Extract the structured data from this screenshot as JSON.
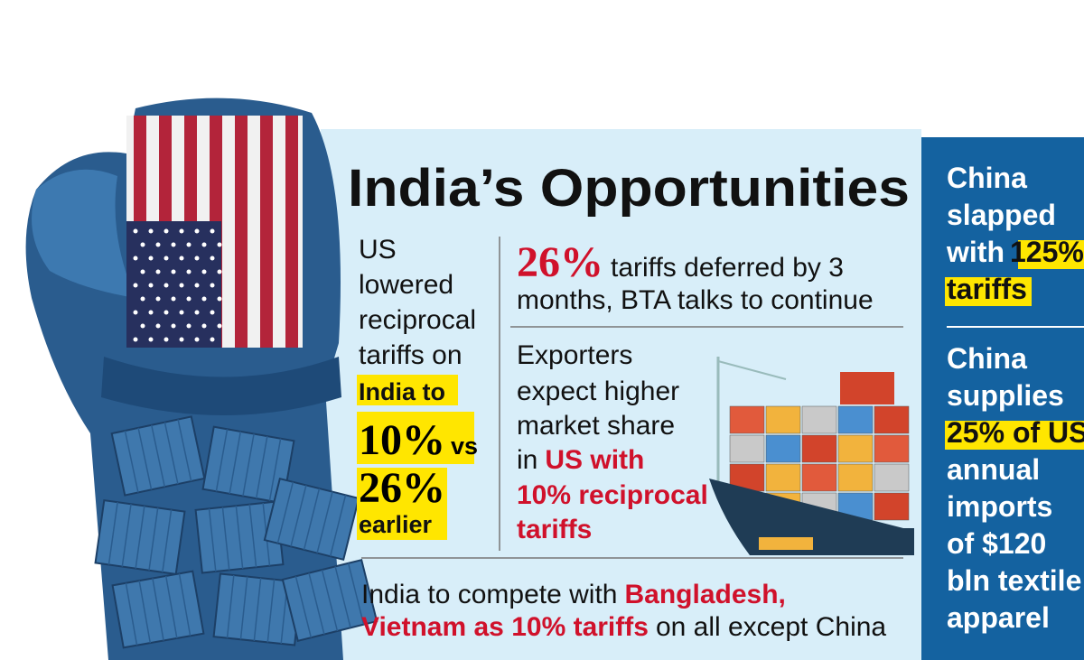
{
  "title": "India’s Opportunities",
  "left_note": {
    "plain": [
      "US",
      "lowered",
      "reciprocal",
      "tariffs on"
    ],
    "highlight": [
      "India to",
      "10%",
      "vs",
      "26%",
      "earlier"
    ]
  },
  "deferral": {
    "figure": "26%",
    "lines": [
      "tariffs deferred by 3",
      "months, BTA talks to continue"
    ]
  },
  "exporters": {
    "plain": [
      "Exporters",
      "expect higher",
      "market share",
      "in"
    ],
    "emphasis": [
      "US with",
      "10% reciprocal",
      "tariffs"
    ]
  },
  "competition": {
    "line1": [
      "India to compete with",
      "Bangladesh,"
    ],
    "line2": [
      "Vietnam as 10% tariffs",
      "on all except China"
    ]
  },
  "china": {
    "slapped": [
      "China",
      "slapped",
      "with",
      "125%",
      "tariffs"
    ],
    "supplies": [
      "China",
      "supplies",
      "25% of US",
      "annual",
      "imports",
      "of $120",
      "bln textile",
      "apparel"
    ]
  }
}
